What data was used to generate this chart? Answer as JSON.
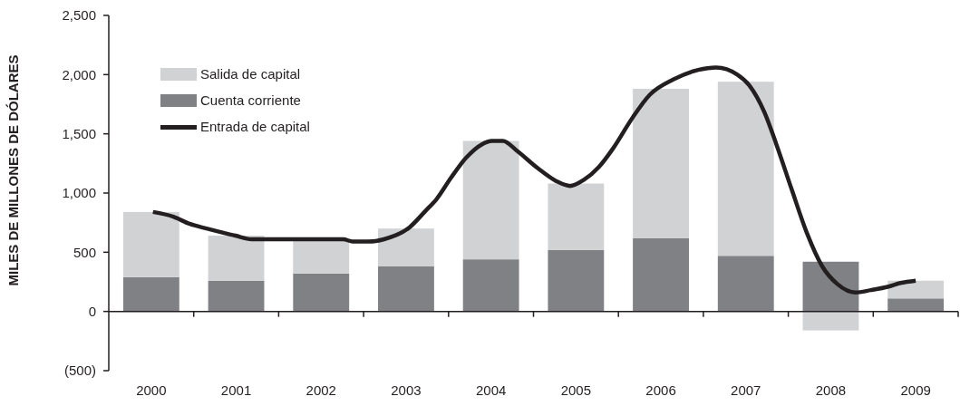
{
  "chart_data": {
    "type": "bar",
    "stacked": true,
    "ylabel": "MILES DE MILLONES DE DÓLARES",
    "x": [
      2000,
      2001,
      2002,
      2003,
      2004,
      2005,
      2006,
      2007,
      2008,
      2009
    ],
    "xlim": [
      1999.5,
      2009.5
    ],
    "xticks": [
      2000,
      2001,
      2002,
      2003,
      2004,
      2005,
      2006,
      2007,
      2008,
      2009,
      {
        "value": 2000.5,
        "label": null
      },
      {
        "value": 2001.5,
        "label": null
      },
      {
        "value": 2002.5,
        "label": null
      },
      {
        "value": 2003.5,
        "label": null
      },
      {
        "value": 2004.5,
        "label": null
      },
      {
        "value": 2005.5,
        "label": null
      },
      {
        "value": 2006.5,
        "label": null
      },
      {
        "value": 2007.5,
        "label": null
      },
      {
        "value": 2008.5,
        "label": null
      },
      {
        "value": 2009.5,
        "label": null
      }
    ],
    "ylim": [
      -500,
      2500
    ],
    "yticks": [
      {
        "value": -500,
        "label": "(500)"
      },
      0,
      500,
      {
        "value": 1000,
        "label": "1,000"
      },
      {
        "value": 1500,
        "label": "1,500"
      },
      {
        "value": 2000,
        "label": "2,000"
      },
      {
        "value": 2500,
        "label": "2,500"
      }
    ],
    "legend": "top left",
    "series": [
      {
        "name": "Cuenta corriente",
        "color": "#808185",
        "values": [
          290,
          260,
          320,
          380,
          440,
          520,
          620,
          470,
          420,
          110
        ]
      },
      {
        "name": "Salida de capital",
        "color": "#d1d2d4",
        "values": [
          550,
          380,
          290,
          320,
          1000,
          560,
          1260,
          1470,
          -160,
          150
        ]
      },
      {
        "name": "Entrada de capital",
        "type": "line",
        "color": "#231f20",
        "line_style": "solid",
        "marker": "none",
        "x": [
          2000.02,
          2000.26,
          2000.45,
          2000.65,
          2000.99,
          2001.18,
          2002.26,
          2002.37,
          2002.56,
          2002.74,
          2003.04,
          2003.23,
          2003.36,
          2003.53,
          2003.71,
          2003.89,
          2004.01,
          2004.14,
          2004.3,
          2004.55,
          2004.77,
          2004.93,
          2005.09,
          2005.27,
          2005.44,
          2005.66,
          2005.87,
          2006.15,
          2006.44,
          2006.65,
          2006.9,
          2007.04,
          2007.22,
          2007.36,
          2007.54,
          2007.72,
          2007.9,
          2008.08,
          2008.29,
          2008.47,
          2008.68,
          2008.82,
          2009.0
        ],
        "values": [
          840,
          800,
          740,
          700,
          640,
          610,
          610,
          590,
          590,
          610,
          710,
          850,
          950,
          1130,
          1300,
          1410,
          1440,
          1440,
          1360,
          1210,
          1100,
          1060,
          1110,
          1220,
          1380,
          1630,
          1830,
          1960,
          2040,
          2060,
          2000,
          1910,
          1680,
          1410,
          1030,
          660,
          380,
          230,
          160,
          180,
          210,
          240,
          260
        ]
      }
    ]
  }
}
